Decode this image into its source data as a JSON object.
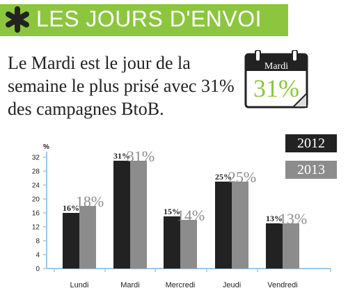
{
  "header": {
    "title": "LES JOURS D'ENVOI",
    "icon": "asterisk-icon"
  },
  "headline": "Le Mardi est le jour de la semaine le plus prisé avec 31% des campagnes BtoB.",
  "calendar": {
    "day": "Mardi",
    "value": "31%",
    "icon": "calendar-icon"
  },
  "colors": {
    "green": "#8cc63f",
    "series_2012": "#222222",
    "series_2013": "#8c8c8c"
  },
  "chart_data": {
    "type": "bar",
    "ylabel": "%",
    "ylim": [
      0,
      32
    ],
    "yticks": [
      0,
      4,
      8,
      12,
      16,
      20,
      24,
      28,
      32
    ],
    "grid": false,
    "legend": "top-right",
    "categories": [
      "Lundi",
      "Mardi",
      "Mercredi",
      "Jeudi",
      "Vendredi"
    ],
    "series": [
      {
        "name": "2012",
        "values": [
          16,
          31,
          15,
          25,
          13
        ],
        "labels": [
          "16%",
          "31%",
          "15%",
          "25%",
          "13%"
        ]
      },
      {
        "name": "2013",
        "values": [
          18,
          31,
          14,
          25,
          13
        ],
        "labels": [
          "18%",
          "31%",
          "14%",
          "25%",
          "13%"
        ]
      }
    ]
  }
}
